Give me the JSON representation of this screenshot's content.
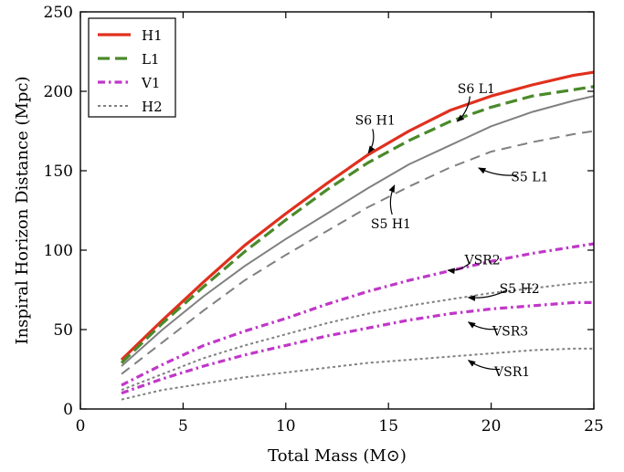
{
  "chart_data": {
    "type": "line",
    "xlabel": "Total Mass (M⊙)",
    "ylabel": "Inspiral Horizon Distance (Mpc)",
    "xlim": [
      0,
      25
    ],
    "ylim": [
      0,
      250
    ],
    "xticks": [
      0,
      5,
      10,
      15,
      20,
      25
    ],
    "yticks": [
      0,
      50,
      100,
      150,
      200,
      250
    ],
    "grid": false,
    "legend_position": "top-left",
    "legend": [
      {
        "label": "H1",
        "color": "#e0301e",
        "style": "solid"
      },
      {
        "label": "L1",
        "color": "#4a8a2a",
        "style": "dashed"
      },
      {
        "label": "V1",
        "color": "#c037c8",
        "style": "dashdot"
      },
      {
        "label": "H2",
        "color": "#808080",
        "style": "dotted"
      }
    ],
    "series": [
      {
        "name": "S6 H1",
        "color": "#e0301e",
        "style": "solid",
        "width": 3.2,
        "x": [
          2,
          4,
          6,
          8,
          10,
          12,
          14,
          16,
          18,
          20,
          22,
          24,
          25
        ],
        "y": [
          31,
          56,
          80,
          103,
          123,
          142,
          160,
          175,
          188,
          197,
          204,
          210,
          212
        ]
      },
      {
        "name": "S6 L1",
        "color": "#4a8a2a",
        "style": "dashed",
        "width": 3.2,
        "x": [
          2,
          4,
          6,
          8,
          10,
          12,
          14,
          16,
          18,
          20,
          22,
          24,
          25
        ],
        "y": [
          29,
          54,
          77,
          99,
          119,
          138,
          155,
          169,
          181,
          190,
          197,
          201,
          203
        ]
      },
      {
        "name": "S5 H1",
        "color": "#808080",
        "style": "solid",
        "width": 2,
        "x": [
          2,
          4,
          6,
          8,
          10,
          12,
          14,
          16,
          18,
          20,
          22,
          24,
          25
        ],
        "y": [
          27,
          50,
          71,
          90,
          107,
          123,
          139,
          154,
          166,
          178,
          187,
          194,
          197
        ]
      },
      {
        "name": "S5 L1",
        "color": "#808080",
        "style": "longdash",
        "width": 2,
        "x": [
          2,
          4,
          6,
          8,
          10,
          12,
          14,
          16,
          18,
          20,
          22,
          24,
          25
        ],
        "y": [
          22,
          42,
          62,
          81,
          97,
          112,
          127,
          140,
          152,
          162,
          168,
          173,
          175
        ]
      },
      {
        "name": "VSR2",
        "color": "#c037c8",
        "style": "dashdot",
        "width": 3.2,
        "x": [
          2,
          4,
          6,
          8,
          10,
          12,
          14,
          16,
          18,
          20,
          22,
          24,
          25
        ],
        "y": [
          15,
          28,
          40,
          49,
          57,
          66,
          74,
          81,
          87,
          93,
          98,
          102,
          104
        ]
      },
      {
        "name": "S5 H2",
        "color": "#808080",
        "style": "dotted",
        "width": 2,
        "x": [
          2,
          4,
          6,
          8,
          10,
          12,
          14,
          16,
          18,
          20,
          22,
          24,
          25
        ],
        "y": [
          12,
          22,
          32,
          40,
          47,
          54,
          60,
          65,
          69,
          73,
          76,
          79,
          80
        ]
      },
      {
        "name": "VSR3",
        "color": "#c037c8",
        "style": "dashdot",
        "width": 3.2,
        "x": [
          2,
          4,
          6,
          8,
          10,
          12,
          14,
          16,
          18,
          20,
          22,
          24,
          25
        ],
        "y": [
          10,
          19,
          27,
          34,
          40,
          46,
          51,
          56,
          60,
          63,
          65,
          67,
          67
        ]
      },
      {
        "name": "VSR1",
        "color": "#808080",
        "style": "dotted",
        "width": 2,
        "x": [
          2,
          4,
          6,
          8,
          10,
          12,
          14,
          16,
          18,
          20,
          22,
          24,
          25
        ],
        "y": [
          6,
          12,
          16,
          20,
          23,
          26,
          29,
          31,
          33,
          35,
          37,
          38,
          38
        ]
      }
    ],
    "annotations": [
      {
        "text": "S6 H1",
        "target": [
          14,
          160
        ]
      },
      {
        "text": "S6 L1",
        "target": [
          18.3,
          180
        ]
      },
      {
        "text": "S5 H1",
        "target": [
          15.3,
          142
        ]
      },
      {
        "text": "S5 L1",
        "target": [
          19.3,
          152
        ]
      },
      {
        "text": "VSR2",
        "target": [
          17.8,
          87
        ]
      },
      {
        "text": "S5 H2",
        "target": [
          18.8,
          70
        ]
      },
      {
        "text": "VSR3",
        "target": [
          18.8,
          55
        ]
      },
      {
        "text": "VSR1",
        "target": [
          18.8,
          31
        ]
      }
    ]
  }
}
